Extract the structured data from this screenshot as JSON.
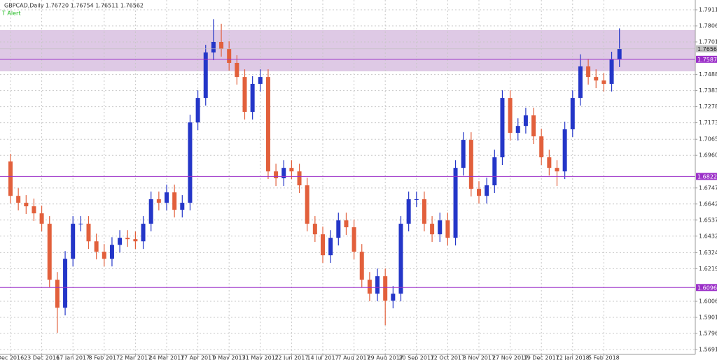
{
  "chart_data": {
    "type": "candlestick",
    "header": "GBPCAD,Daily  1.76720 1.76754 1.76511 1.76562",
    "alert": "T Alert",
    "categories": [
      "Dec 2016",
      null,
      null,
      null,
      "23 Dec 2016",
      null,
      null,
      null,
      "17 Jan 2017",
      null,
      null,
      null,
      "8 Feb 2017",
      null,
      null,
      null,
      "2 Mar 2017",
      null,
      null,
      null,
      "24 Mar 2017",
      null,
      null,
      null,
      "17 Apr 2017",
      null,
      null,
      null,
      "9 May 2017",
      null,
      null,
      null,
      "31 May 2017",
      null,
      null,
      null,
      "22 Jun 2017",
      null,
      null,
      null,
      "14 Jul 2017",
      null,
      null,
      null,
      "7 Aug 2017",
      null,
      null,
      null,
      "29 Aug 2017",
      null,
      null,
      null,
      "20 Sep 2017",
      null,
      null,
      null,
      "12 Oct 2017",
      null,
      null,
      null,
      "3 Nov 2017",
      null,
      null,
      null,
      "27 Nov 2017",
      null,
      null,
      null,
      "19 Dec 2017",
      null,
      null,
      null,
      "12 Jan 2018",
      null,
      null,
      null,
      "5 Feb 2018",
      null,
      null
    ],
    "open": [
      1.692,
      1.6695,
      1.665,
      1.6627,
      1.6581,
      1.6513,
      1.6147,
      1.5964,
      1.6284,
      1.6513,
      1.6513,
      1.6398,
      1.633,
      1.6284,
      1.6375,
      1.6421,
      1.6412,
      1.6398,
      1.6513,
      1.6673,
      1.665,
      1.6718,
      1.6604,
      1.665,
      1.7175,
      1.7335,
      1.7632,
      1.7701,
      1.7655,
      1.7564,
      1.7472,
      1.7244,
      1.7427,
      1.7472,
      1.6855,
      1.681,
      1.6878,
      1.6855,
      1.6764,
      1.6513,
      1.6444,
      1.6307,
      1.6421,
      1.6535,
      1.649,
      1.633,
      1.6147,
      1.6056,
      1.617,
      1.601,
      1.6056,
      1.6513,
      1.6673,
      1.6673,
      1.6513,
      1.6444,
      1.6535,
      1.6421,
      1.6878,
      1.7061,
      1.6741,
      1.6695,
      1.6764,
      1.6947,
      1.7335,
      1.7107,
      1.7152,
      1.7221,
      1.7084,
      1.6947,
      1.6878,
      1.6855,
      1.713,
      1.7335,
      1.7541,
      1.7472,
      1.7449,
      1.7427,
      1.7587
    ],
    "high": [
      1.697,
      1.6745,
      1.67,
      1.6677,
      1.6631,
      1.6563,
      1.6197,
      1.6334,
      1.6563,
      1.6563,
      1.6563,
      1.6448,
      1.638,
      1.6425,
      1.6471,
      1.6471,
      1.6462,
      1.6563,
      1.6723,
      1.6723,
      1.6768,
      1.6768,
      1.67,
      1.7225,
      1.7385,
      1.7682,
      1.785,
      1.782,
      1.7705,
      1.7614,
      1.7522,
      1.7477,
      1.7522,
      1.7522,
      1.6905,
      1.6928,
      1.6928,
      1.6905,
      1.6814,
      1.6563,
      1.6494,
      1.6471,
      1.6585,
      1.6585,
      1.654,
      1.638,
      1.6197,
      1.622,
      1.622,
      1.6106,
      1.6563,
      1.6723,
      1.6723,
      1.6723,
      1.6563,
      1.6585,
      1.6585,
      1.6928,
      1.7111,
      1.7111,
      1.6791,
      1.6814,
      1.6997,
      1.7385,
      1.7385,
      1.7202,
      1.7271,
      1.7271,
      1.7134,
      1.6997,
      1.6928,
      1.718,
      1.7385,
      1.762,
      1.7591,
      1.7522,
      1.7499,
      1.7637,
      1.779
    ],
    "low": [
      1.6645,
      1.66,
      1.6577,
      1.6531,
      1.6463,
      1.6097,
      1.58,
      1.5914,
      1.6234,
      1.6463,
      1.6348,
      1.628,
      1.6234,
      1.6234,
      1.6325,
      1.6362,
      1.6348,
      1.6348,
      1.6463,
      1.66,
      1.66,
      1.6554,
      1.6554,
      1.66,
      1.7125,
      1.7285,
      1.7582,
      1.7605,
      1.7514,
      1.7422,
      1.7194,
      1.7194,
      1.7377,
      1.6805,
      1.676,
      1.676,
      1.6805,
      1.6714,
      1.6463,
      1.6394,
      1.6257,
      1.6257,
      1.6371,
      1.644,
      1.628,
      1.6097,
      1.6006,
      1.6006,
      1.585,
      1.596,
      1.6006,
      1.6463,
      1.6623,
      1.6463,
      1.6394,
      1.6394,
      1.6371,
      1.6371,
      1.6828,
      1.6691,
      1.6645,
      1.6645,
      1.6714,
      1.6897,
      1.7057,
      1.7057,
      1.7102,
      1.7034,
      1.6897,
      1.6828,
      1.676,
      1.6805,
      1.708,
      1.7285,
      1.7422,
      1.7399,
      1.7377,
      1.7377,
      1.7537
    ],
    "close": [
      1.6695,
      1.665,
      1.6627,
      1.6581,
      1.6513,
      1.6147,
      1.5964,
      1.6284,
      1.6513,
      1.6513,
      1.6398,
      1.633,
      1.6284,
      1.6375,
      1.6421,
      1.6412,
      1.6398,
      1.6513,
      1.6673,
      1.665,
      1.6718,
      1.6604,
      1.665,
      1.7175,
      1.7335,
      1.7632,
      1.7701,
      1.7655,
      1.7564,
      1.7472,
      1.7244,
      1.7427,
      1.7472,
      1.6855,
      1.681,
      1.6878,
      1.6855,
      1.6764,
      1.6513,
      1.6444,
      1.6307,
      1.6421,
      1.6535,
      1.649,
      1.633,
      1.6147,
      1.6056,
      1.617,
      1.601,
      1.6056,
      1.6513,
      1.6673,
      1.6673,
      1.6513,
      1.6444,
      1.6535,
      1.6421,
      1.6878,
      1.7061,
      1.6741,
      1.6695,
      1.6764,
      1.6947,
      1.7335,
      1.7107,
      1.7152,
      1.7221,
      1.7084,
      1.6947,
      1.6878,
      1.6855,
      1.713,
      1.7335,
      1.7541,
      1.7472,
      1.7449,
      1.7427,
      1.7587,
      1.7656
    ],
    "up_color": "#2436c8",
    "down_color": "#e2603c",
    "ylim": [
      1.5659,
      1.7975
    ],
    "yticks": [
      {
        "value": 1.7911,
        "label": "1.79110"
      },
      {
        "value": 1.7806,
        "label": "1.78060"
      },
      {
        "value": 1.7701,
        "label": "1.77010"
      },
      {
        "value": 1.7488,
        "label": "1.74880"
      },
      {
        "value": 1.7383,
        "label": "1.73830"
      },
      {
        "value": 1.7278,
        "label": "1.72780"
      },
      {
        "value": 1.7173,
        "label": "1.71730"
      },
      {
        "value": 1.7065,
        "label": "1.70650"
      },
      {
        "value": 1.696,
        "label": "1.69600"
      },
      {
        "value": 1.6747,
        "label": "1.67470"
      },
      {
        "value": 1.6642,
        "label": "1.66420"
      },
      {
        "value": 1.6537,
        "label": "1.65370"
      },
      {
        "value": 1.6432,
        "label": "1.64320"
      },
      {
        "value": 1.6324,
        "label": "1.63240"
      },
      {
        "value": 1.6219,
        "label": "1.62190"
      },
      {
        "value": 1.6006,
        "label": "1.60060"
      },
      {
        "value": 1.5901,
        "label": "1.59010"
      },
      {
        "value": 1.5796,
        "label": "1.57960"
      },
      {
        "value": 1.5691,
        "label": "1.56910"
      }
    ],
    "grid": true,
    "zone": [
      1.7509,
      1.7779
    ],
    "zone_color": "#d8bfe0",
    "levels": [
      1.75875,
      1.68222,
      1.60962
    ],
    "level_color": "#9b30c8",
    "current_price": 1.76562
  }
}
